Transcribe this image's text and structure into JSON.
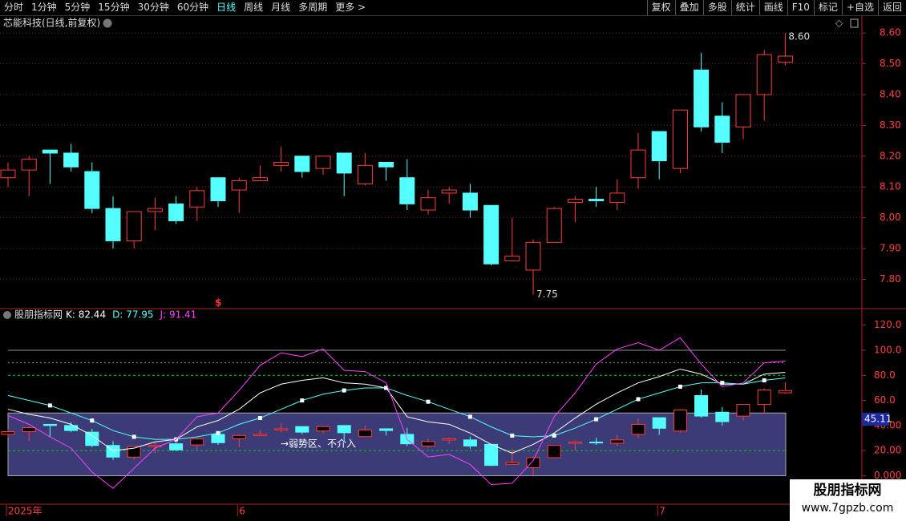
{
  "toolbar": {
    "left": [
      "分时",
      "1分钟",
      "5分钟",
      "15分钟",
      "30分钟",
      "60分钟",
      "日线",
      "周线",
      "月线",
      "多周期",
      "更多 >"
    ],
    "active": "日线",
    "right": [
      "复权",
      "叠加",
      "多股",
      "统计",
      "画线",
      "F10",
      "标记",
      "+自选",
      "返回"
    ]
  },
  "chart_data": [
    {
      "type": "candlestick",
      "title": "芯能科技(日线,前复权)",
      "signal": "$",
      "categories": [
        "2025年",
        null,
        null,
        null,
        null,
        null,
        null,
        null,
        null,
        null,
        null,
        "6",
        null,
        null,
        null,
        null,
        null,
        null,
        null,
        null,
        null,
        null,
        null,
        null,
        null,
        null,
        null,
        null,
        null,
        null,
        null,
        "7",
        null,
        null,
        null,
        null,
        null,
        null
      ],
      "open": [
        8.13,
        8.155,
        8.22,
        8.21,
        8.15,
        8.03,
        7.925,
        8.02,
        8.045,
        8.035,
        8.13,
        8.09,
        8.12,
        8.17,
        8.2,
        8.16,
        8.21,
        8.11,
        8.18,
        8.13,
        8.025,
        8.08,
        8.08,
        8.04,
        7.86,
        7.83,
        7.92,
        8.05,
        8.06,
        8.05,
        8.13,
        8.28,
        8.16,
        8.48,
        8.33,
        8.295,
        8.4,
        8.505
      ],
      "high": [
        8.18,
        8.2,
        8.22,
        8.24,
        8.18,
        8.07,
        8.02,
        8.065,
        8.07,
        8.1,
        8.13,
        8.13,
        8.17,
        8.23,
        8.2,
        8.2,
        8.21,
        8.21,
        8.18,
        8.19,
        8.09,
        8.1,
        8.11,
        8.04,
        8.0,
        7.93,
        8.035,
        8.07,
        8.1,
        8.125,
        8.275,
        8.28,
        8.35,
        8.535,
        8.375,
        8.4,
        8.545,
        8.6
      ],
      "low": [
        8.1,
        8.07,
        8.11,
        8.15,
        8.015,
        7.9,
        7.9,
        7.96,
        7.98,
        7.99,
        8.035,
        8.015,
        8.12,
        8.15,
        8.13,
        8.14,
        8.07,
        8.105,
        8.12,
        8.025,
        8.01,
        8.045,
        8.0,
        7.845,
        7.86,
        7.75,
        7.92,
        7.985,
        8.035,
        8.025,
        8.095,
        8.125,
        8.145,
        8.28,
        8.21,
        8.255,
        8.315,
        8.495
      ],
      "close": [
        8.155,
        8.19,
        8.21,
        8.165,
        8.03,
        7.925,
        8.02,
        8.03,
        7.99,
        8.088,
        8.055,
        8.12,
        8.13,
        8.18,
        8.15,
        8.2,
        8.145,
        8.17,
        8.165,
        8.045,
        8.065,
        8.09,
        8.025,
        7.85,
        7.875,
        7.92,
        8.03,
        8.06,
        8.055,
        8.08,
        8.22,
        8.185,
        8.35,
        8.295,
        8.245,
        8.4,
        8.53,
        8.525
      ],
      "up_color": "#ff3c3c",
      "down_color": "#54ffff",
      "annotations": [
        {
          "label": "8.60",
          "value": 8.6,
          "of": "high"
        },
        {
          "label": "7.75",
          "value": 7.75,
          "of": "low"
        }
      ],
      "ylim": [
        7.71,
        8.65
      ],
      "yticks": [
        {
          "value": 8.6,
          "label": "8.60"
        },
        {
          "value": 8.5,
          "label": "8.50"
        },
        {
          "value": 8.4,
          "label": "8.40"
        },
        {
          "value": 8.3,
          "label": "8.30"
        },
        {
          "value": 8.2,
          "label": "8.20"
        },
        {
          "value": 8.1,
          "label": "8.10"
        },
        {
          "value": 8.0,
          "label": "8.00"
        },
        {
          "value": 7.9,
          "label": "7.90"
        },
        {
          "value": 7.8,
          "label": "7.80"
        }
      ],
      "grid": true
    },
    {
      "type": "line",
      "title": "股朋指标网",
      "legend": [
        {
          "label": "K: 82.44",
          "color": "#ffffff"
        },
        {
          "label": "D: 77.95",
          "color": "#54ffff"
        },
        {
          "label": "J: 91.41",
          "color": "#ff40ff"
        }
      ],
      "series": [
        {
          "color": "#ffffff",
          "values": [
            53,
            49,
            46,
            41,
            32,
            20,
            22,
            27,
            29,
            39,
            44,
            53,
            66,
            73,
            76,
            78,
            74,
            73,
            70,
            47,
            43,
            41,
            34,
            25,
            18,
            25,
            34,
            46,
            57,
            66,
            74,
            79,
            85,
            81,
            73,
            73,
            81,
            82.44
          ]
        },
        {
          "color": "#54ffff",
          "markers": true,
          "values": [
            64,
            60,
            56,
            50,
            44,
            36,
            31,
            29,
            29,
            31,
            34,
            41,
            46,
            53,
            60,
            65,
            68,
            70,
            70,
            64,
            59,
            53,
            47,
            39,
            32,
            31,
            32,
            38,
            45,
            53,
            61,
            66,
            71,
            74,
            74,
            73,
            76,
            77.95
          ]
        },
        {
          "color": "#ff40ff",
          "values": [
            48,
            41,
            31,
            22,
            3,
            -10,
            6,
            22,
            29,
            47,
            50,
            68,
            88,
            98,
            95,
            101,
            84,
            83,
            74,
            29,
            15,
            17,
            9,
            -7,
            -6,
            12,
            47,
            66,
            89,
            101,
            106,
            100,
            110,
            89,
            71,
            74,
            90,
            91.41
          ]
        }
      ],
      "zone": {
        "from": 0,
        "to": 50,
        "label": "→弱势区、不介入",
        "color": "#3b3b78"
      },
      "hlines": [
        {
          "value": 100,
          "color": "#909090",
          "dash": "none"
        },
        {
          "value": 90,
          "color": "#909090",
          "dash": "2 3"
        },
        {
          "value": 80,
          "color": "#00d000",
          "dash": "3 3"
        },
        {
          "value": 20,
          "color": "#00d000",
          "dash": "3 3"
        }
      ],
      "current": 45.11,
      "ylim": [
        -22,
        130
      ],
      "yticks": [
        {
          "value": 120,
          "label": "120.0"
        },
        {
          "value": 100,
          "label": "100.0"
        },
        {
          "value": 80,
          "label": "80.0"
        },
        {
          "value": 60,
          "label": "60.0"
        },
        {
          "value": 40,
          "label": "40.00"
        },
        {
          "value": 20,
          "label": "20.00"
        },
        {
          "value": 0,
          "label": "0.000"
        }
      ]
    }
  ],
  "watermark": {
    "title": "股朋指标网",
    "url": "www.7gpzb.com"
  }
}
